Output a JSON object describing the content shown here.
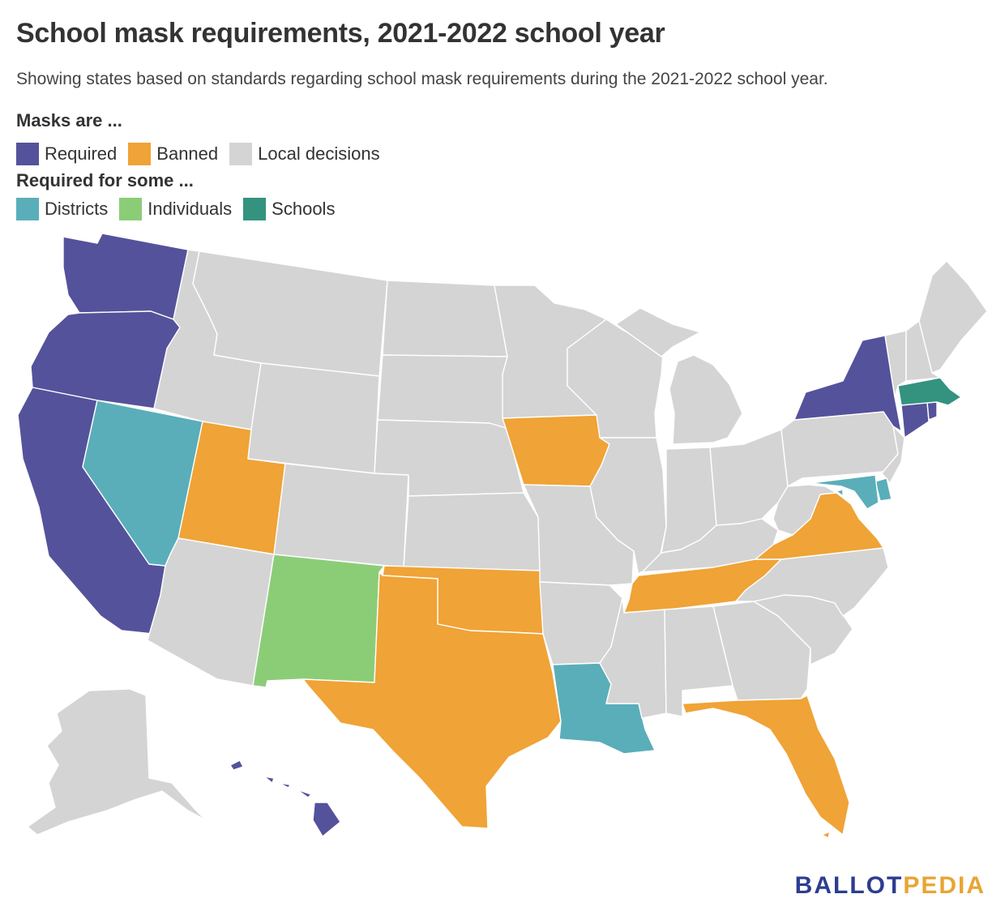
{
  "header": {
    "title": "School mask requirements, 2021-2022 school year",
    "subtitle": "Showing states based on standards regarding school mask requirements during the 2021-2022 school year."
  },
  "legend": {
    "group1_title": "Masks are ...",
    "group1": [
      {
        "key": "required",
        "label": "Required",
        "color": "#54529b"
      },
      {
        "key": "banned",
        "label": "Banned",
        "color": "#f0a336"
      },
      {
        "key": "local",
        "label": "Local decisions",
        "color": "#d4d4d4"
      }
    ],
    "group2_title": "Required for some ...",
    "group2": [
      {
        "key": "districts",
        "label": "Districts",
        "color": "#5aaeb9"
      },
      {
        "key": "individuals",
        "label": "Individuals",
        "color": "#8bcd77"
      },
      {
        "key": "schools",
        "label": "Schools",
        "color": "#33937e"
      }
    ]
  },
  "colors": {
    "required": "#54529b",
    "banned": "#f0a336",
    "local": "#d4d4d4",
    "districts": "#5aaeb9",
    "individuals": "#8bcd77",
    "schools": "#33937e"
  },
  "states": {
    "WA": "required",
    "OR": "required",
    "CA": "required",
    "NV": "districts",
    "ID": "local",
    "MT": "local",
    "WY": "local",
    "UT": "banned",
    "AZ": "local",
    "CO": "local",
    "NM": "individuals",
    "ND": "local",
    "SD": "local",
    "NE": "local",
    "KS": "local",
    "OK": "banned",
    "TX": "banned",
    "MN": "local",
    "IA": "banned",
    "MO": "local",
    "AR": "local",
    "LA": "districts",
    "WI": "local",
    "IL": "local",
    "MS": "local",
    "MI": "local",
    "IN": "local",
    "KY": "local",
    "TN": "banned",
    "AL": "local",
    "OH": "local",
    "GA": "local",
    "FL": "banned",
    "SC": "local",
    "NC": "local",
    "VA": "banned",
    "WV": "local",
    "PA": "local",
    "NY": "required",
    "NJ": "local",
    "DE": "districts",
    "MD": "districts",
    "DC": "districts",
    "CT": "required",
    "RI": "required",
    "MA": "schools",
    "VT": "local",
    "NH": "local",
    "ME": "local",
    "AK": "local",
    "HI": "required"
  },
  "logo": {
    "part1": "BALLOT",
    "part2": "PEDIA"
  }
}
